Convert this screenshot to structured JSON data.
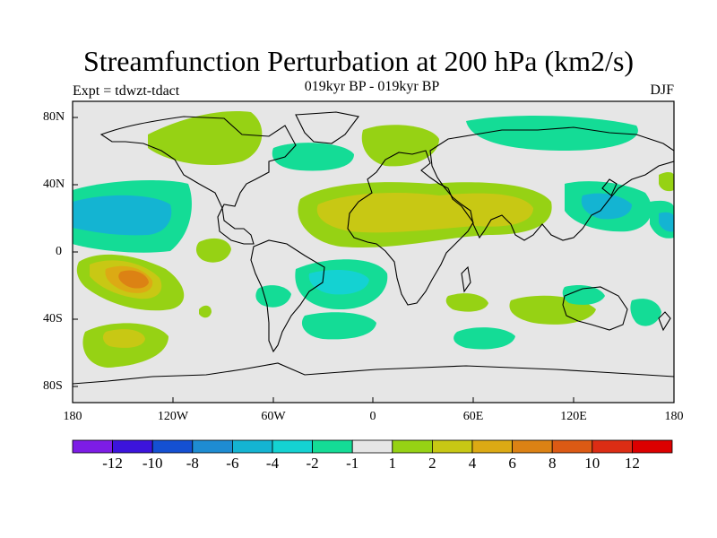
{
  "header": {
    "title": "Streamfunction Perturbation at 200 hPa (km2/s)",
    "subtitle": "019kyr BP - 019kyr BP",
    "expt": "Expt = tdwzt-tdact",
    "season": "DJF"
  },
  "axes": {
    "lon_labels": [
      "180",
      "120W",
      "60W",
      "0",
      "60E",
      "120E",
      "180"
    ],
    "lat_labels": [
      "80N",
      "40N",
      "0",
      "40S",
      "80S"
    ]
  },
  "colorbar": {
    "labels": [
      "-12",
      "-10",
      "-8",
      "-6",
      "-4",
      "-2",
      "-1",
      "1",
      "2",
      "4",
      "6",
      "8",
      "10",
      "12"
    ],
    "colors": [
      "#7d1ce6",
      "#3c14dc",
      "#1450d2",
      "#1e8cd2",
      "#14b4d2",
      "#14d2d2",
      "#14dc96",
      "#e6e6e6",
      "#96d214",
      "#c8c814",
      "#dcaa14",
      "#dc8214",
      "#dc5a14",
      "#dc2d14",
      "#dc0000"
    ]
  },
  "map": {
    "background": "#e6e6e6",
    "regions": [
      {
        "name": "north-pacific-low",
        "color": "#14dc96"
      },
      {
        "name": "north-pacific-low-inner",
        "color": "#14b4d2"
      },
      {
        "name": "south-pacific-high",
        "color": "#96d214"
      },
      {
        "name": "south-pacific-high-inner",
        "color": "#c8c814"
      },
      {
        "name": "south-pacific-high-core",
        "color": "#dc8214"
      },
      {
        "name": "africa-asia-high",
        "color": "#96d214"
      },
      {
        "name": "africa-asia-high-inner",
        "color": "#c8c814"
      }
    ]
  }
}
